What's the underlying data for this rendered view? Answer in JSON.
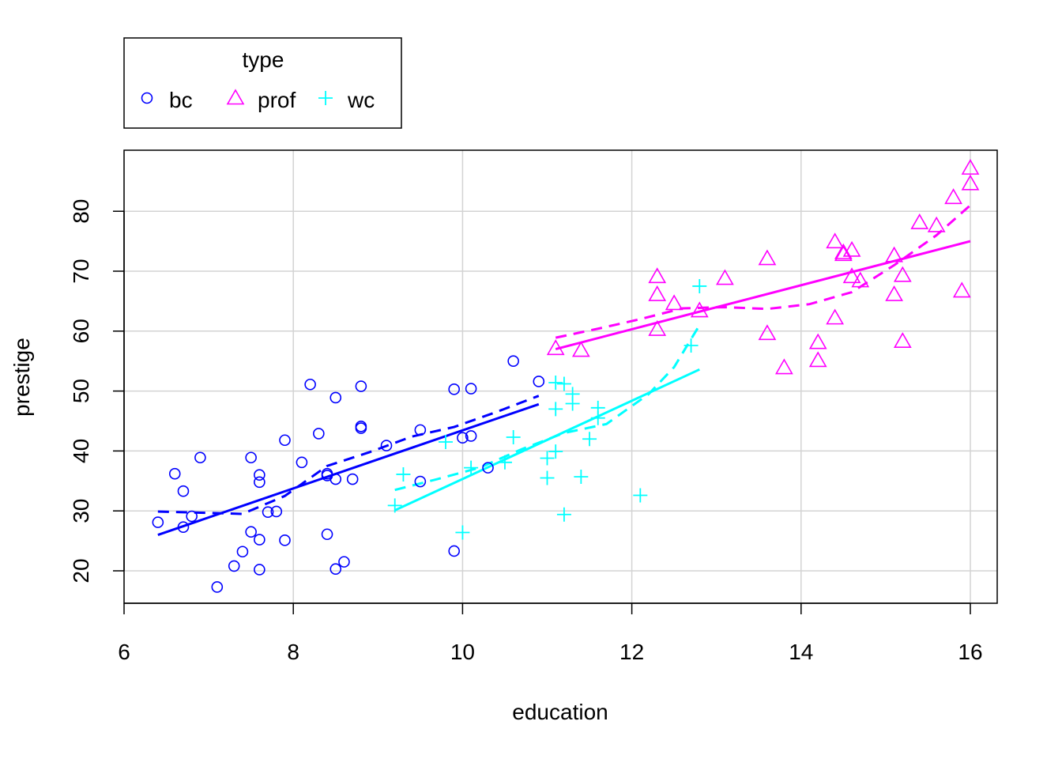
{
  "chart_data": {
    "type": "scatter",
    "title": "",
    "xlabel": "education",
    "ylabel": "prestige",
    "xlim": [
      6,
      16
    ],
    "ylim": [
      15,
      90
    ],
    "x_ticks": [
      6,
      8,
      10,
      12,
      14,
      16
    ],
    "y_ticks": [
      20,
      30,
      40,
      50,
      60,
      70,
      80
    ],
    "grid": true,
    "legend": {
      "title": "type",
      "position": "top-left, outside plot",
      "entries": [
        {
          "name": "bc",
          "marker": "circle",
          "color": "#0000ff"
        },
        {
          "name": "prof",
          "marker": "triangle",
          "color": "#ff00ff"
        },
        {
          "name": "wc",
          "marker": "plus",
          "color": "#00ffff"
        }
      ]
    },
    "series": [
      {
        "name": "bc",
        "marker": "circle",
        "color": "#0000ff",
        "points": [
          [
            6.4,
            28.1
          ],
          [
            6.6,
            36.2
          ],
          [
            6.7,
            27.3
          ],
          [
            6.7,
            33.3
          ],
          [
            6.8,
            29.1
          ],
          [
            6.9,
            38.9
          ],
          [
            7.1,
            17.3
          ],
          [
            7.3,
            20.8
          ],
          [
            7.4,
            23.2
          ],
          [
            7.5,
            38.9
          ],
          [
            7.5,
            26.5
          ],
          [
            7.6,
            36.0
          ],
          [
            7.6,
            20.2
          ],
          [
            7.6,
            25.2
          ],
          [
            7.6,
            34.8
          ],
          [
            7.7,
            29.8
          ],
          [
            7.8,
            29.9
          ],
          [
            7.9,
            41.8
          ],
          [
            7.9,
            25.1
          ],
          [
            8.1,
            38.1
          ],
          [
            8.2,
            51.1
          ],
          [
            8.3,
            42.9
          ],
          [
            8.4,
            26.1
          ],
          [
            8.4,
            36.2
          ],
          [
            8.4,
            35.9
          ],
          [
            8.5,
            48.9
          ],
          [
            8.5,
            20.3
          ],
          [
            8.5,
            35.3
          ],
          [
            8.6,
            21.5
          ],
          [
            8.7,
            35.3
          ],
          [
            8.8,
            50.8
          ],
          [
            8.8,
            43.8
          ],
          [
            8.8,
            44.1
          ],
          [
            9.1,
            40.9
          ],
          [
            9.5,
            43.5
          ],
          [
            9.5,
            34.9
          ],
          [
            9.9,
            23.3
          ],
          [
            9.9,
            50.3
          ],
          [
            10.0,
            42.2
          ],
          [
            10.1,
            50.4
          ],
          [
            10.1,
            42.5
          ],
          [
            10.3,
            37.2
          ],
          [
            10.6,
            55.0
          ],
          [
            10.9,
            51.6
          ]
        ],
        "linear_fit": [
          [
            6.4,
            26.0
          ],
          [
            10.9,
            47.8
          ]
        ],
        "smooth_fit": [
          [
            6.4,
            29.9
          ],
          [
            6.9,
            29.7
          ],
          [
            7.4,
            29.5
          ],
          [
            7.9,
            32.5
          ],
          [
            8.4,
            37.5
          ],
          [
            8.9,
            39.8
          ],
          [
            9.4,
            42.4
          ],
          [
            9.9,
            44.0
          ],
          [
            10.4,
            46.5
          ],
          [
            10.9,
            49.2
          ]
        ]
      },
      {
        "name": "prof",
        "marker": "triangle",
        "color": "#ff00ff",
        "points": [
          [
            11.1,
            57.1
          ],
          [
            11.4,
            56.8
          ],
          [
            12.3,
            69.1
          ],
          [
            12.3,
            66.1
          ],
          [
            12.3,
            60.3
          ],
          [
            12.5,
            64.6
          ],
          [
            12.8,
            63.4
          ],
          [
            13.1,
            68.8
          ],
          [
            13.6,
            72.1
          ],
          [
            13.6,
            59.6
          ],
          [
            13.8,
            53.9
          ],
          [
            14.2,
            58.1
          ],
          [
            14.2,
            55.1
          ],
          [
            14.4,
            74.9
          ],
          [
            14.4,
            62.2
          ],
          [
            14.5,
            72.8
          ],
          [
            14.5,
            73.1
          ],
          [
            14.6,
            73.5
          ],
          [
            14.6,
            69.1
          ],
          [
            14.7,
            68.4
          ],
          [
            15.1,
            72.6
          ],
          [
            15.1,
            66.1
          ],
          [
            15.2,
            69.3
          ],
          [
            15.2,
            58.3
          ],
          [
            15.4,
            78.1
          ],
          [
            15.6,
            77.6
          ],
          [
            15.8,
            82.3
          ],
          [
            15.9,
            66.7
          ],
          [
            16.0,
            84.6
          ],
          [
            16.0,
            87.2
          ]
        ],
        "linear_fit": [
          [
            11.1,
            57.0
          ],
          [
            16.0,
            75.0
          ]
        ],
        "smooth_fit": [
          [
            11.1,
            58.9
          ],
          [
            11.6,
            60.4
          ],
          [
            12.1,
            62.0
          ],
          [
            12.6,
            63.8
          ],
          [
            13.1,
            64.0
          ],
          [
            13.6,
            63.7
          ],
          [
            14.1,
            64.5
          ],
          [
            14.6,
            66.5
          ],
          [
            15.1,
            71.0
          ],
          [
            15.6,
            76.0
          ],
          [
            16.0,
            81.0
          ]
        ]
      },
      {
        "name": "wc",
        "marker": "plus",
        "color": "#00ffff",
        "points": [
          [
            9.2,
            30.9
          ],
          [
            9.3,
            36.1
          ],
          [
            9.8,
            41.5
          ],
          [
            10.0,
            26.4
          ],
          [
            10.1,
            37.2
          ],
          [
            10.5,
            38.1
          ],
          [
            10.6,
            42.3
          ],
          [
            11.0,
            35.5
          ],
          [
            11.0,
            38.8
          ],
          [
            11.1,
            51.4
          ],
          [
            11.1,
            47.0
          ],
          [
            11.1,
            39.9
          ],
          [
            11.2,
            51.2
          ],
          [
            11.2,
            29.4
          ],
          [
            11.3,
            49.5
          ],
          [
            11.3,
            47.9
          ],
          [
            11.4,
            35.7
          ],
          [
            11.5,
            42.0
          ],
          [
            11.6,
            45.5
          ],
          [
            11.6,
            47.2
          ],
          [
            12.1,
            32.6
          ],
          [
            12.7,
            57.6
          ],
          [
            12.8,
            67.5
          ]
        ],
        "linear_fit": [
          [
            9.2,
            30.1
          ],
          [
            12.8,
            53.6
          ]
        ],
        "smooth_fit": [
          [
            9.2,
            33.5
          ],
          [
            9.7,
            35.3
          ],
          [
            10.2,
            37.2
          ],
          [
            10.7,
            40.3
          ],
          [
            11.2,
            43.0
          ],
          [
            11.7,
            44.5
          ],
          [
            12.2,
            49.5
          ],
          [
            12.5,
            54.0
          ],
          [
            12.8,
            61.0
          ]
        ]
      }
    ]
  }
}
